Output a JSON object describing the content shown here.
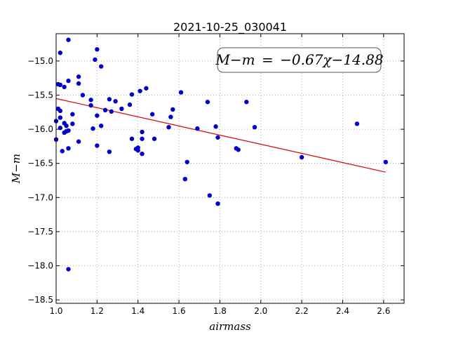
{
  "chart_data": {
    "type": "scatter",
    "title": "2021-10-25_030041",
    "xlabel": "airmass",
    "ylabel": "M−m",
    "xlim": [
      1.0,
      2.7
    ],
    "ylim": [
      -18.55,
      -14.6
    ],
    "y_inverted": true,
    "grid": true,
    "x_ticks": [
      "1.0",
      "1.2",
      "1.4",
      "1.6",
      "1.8",
      "2.0",
      "2.2",
      "2.4",
      "2.6"
    ],
    "y_ticks": [
      "−15.0",
      "−15.5",
      "−16.0",
      "−16.5",
      "−17.0",
      "−17.5",
      "−18.0",
      "−18.5"
    ],
    "points_color": "#0000cc",
    "points": [
      [
        1.0,
        -15.88
      ],
      [
        1.0,
        -16.15
      ],
      [
        1.01,
        -15.34
      ],
      [
        1.01,
        -15.7
      ],
      [
        1.02,
        -14.88
      ],
      [
        1.02,
        -15.35
      ],
      [
        1.02,
        -15.83
      ],
      [
        1.02,
        -15.73
      ],
      [
        1.02,
        -15.98
      ],
      [
        1.03,
        -16.32
      ],
      [
        1.04,
        -15.38
      ],
      [
        1.04,
        -16.05
      ],
      [
        1.04,
        -15.91
      ],
      [
        1.05,
        -16.03
      ],
      [
        1.05,
        -15.95
      ],
      [
        1.06,
        -15.29
      ],
      [
        1.06,
        -16.28
      ],
      [
        1.06,
        -16.02
      ],
      [
        1.06,
        -14.69
      ],
      [
        1.06,
        -18.05
      ],
      [
        1.08,
        -15.78
      ],
      [
        1.08,
        -15.92
      ],
      [
        1.11,
        -15.23
      ],
      [
        1.11,
        -15.33
      ],
      [
        1.11,
        -16.18
      ],
      [
        1.13,
        -15.5
      ],
      [
        1.17,
        -15.57
      ],
      [
        1.17,
        -15.65
      ],
      [
        1.18,
        -15.99
      ],
      [
        1.19,
        -14.98
      ],
      [
        1.2,
        -14.83
      ],
      [
        1.2,
        -15.8
      ],
      [
        1.2,
        -16.24
      ],
      [
        1.22,
        -15.08
      ],
      [
        1.22,
        -15.95
      ],
      [
        1.24,
        -15.72
      ],
      [
        1.26,
        -15.56
      ],
      [
        1.26,
        -16.33
      ],
      [
        1.27,
        -15.74
      ],
      [
        1.29,
        -15.59
      ],
      [
        1.32,
        -15.7
      ],
      [
        1.36,
        -15.64
      ],
      [
        1.37,
        -15.49
      ],
      [
        1.37,
        -16.14
      ],
      [
        1.39,
        -16.29
      ],
      [
        1.4,
        -16.27
      ],
      [
        1.4,
        -16.31
      ],
      [
        1.41,
        -15.44
      ],
      [
        1.42,
        -16.04
      ],
      [
        1.42,
        -16.14
      ],
      [
        1.42,
        -16.36
      ],
      [
        1.44,
        -15.4
      ],
      [
        1.47,
        -15.78
      ],
      [
        1.48,
        -16.14
      ],
      [
        1.55,
        -15.97
      ],
      [
        1.56,
        -15.82
      ],
      [
        1.57,
        -15.71
      ],
      [
        1.61,
        -15.46
      ],
      [
        1.63,
        -16.73
      ],
      [
        1.64,
        -16.48
      ],
      [
        1.69,
        -15.99
      ],
      [
        1.74,
        -15.6
      ],
      [
        1.75,
        -16.97
      ],
      [
        1.78,
        -15.96
      ],
      [
        1.79,
        -16.12
      ],
      [
        1.79,
        -17.09
      ],
      [
        1.88,
        -16.28
      ],
      [
        1.89,
        -16.3
      ],
      [
        1.93,
        -15.6
      ],
      [
        1.97,
        -15.97
      ],
      [
        2.2,
        -16.41
      ],
      [
        2.47,
        -15.92
      ],
      [
        2.61,
        -16.48
      ]
    ],
    "fit": {
      "slope": -0.67,
      "intercept": -14.88,
      "color": "#dd0000",
      "x_range": [
        1.0,
        2.61
      ]
    },
    "annotation": {
      "lhs": "M−m",
      "eq": "=",
      "rhs": "−0.67χ−14.88",
      "position": "top-right"
    }
  }
}
